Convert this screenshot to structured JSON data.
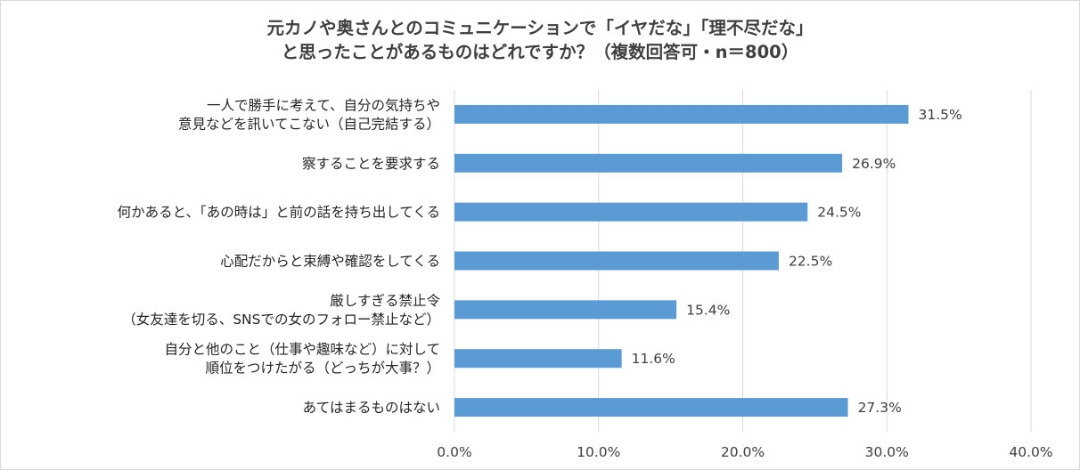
{
  "chart_data": {
    "type": "bar",
    "orientation": "horizontal",
    "title_lines": [
      "元カノや奥さんとのコミュニケーションで「イヤだな」「理不尽だな」",
      "と思ったことがあるものはどれですか？（複数回答可・n＝800）"
    ],
    "categories": [
      [
        "一人で勝手に考えて、自分の気持ちや",
        "意見などを訊いてこない（自己完結する）"
      ],
      [
        "察することを要求する"
      ],
      [
        "何かあると、「あの時は」と前の話を持ち出してくる"
      ],
      [
        "心配だからと束縛や確認をしてくる"
      ],
      [
        "厳しすぎる禁止令",
        "（女友達を切る、SNSでの女のフォロー禁止など）"
      ],
      [
        "自分と他のこと（仕事や趣味など）に対して",
        "順位をつけたがる（どっちが大事？）"
      ],
      [
        "あてはまるものはない"
      ]
    ],
    "values": [
      31.5,
      26.9,
      24.5,
      22.5,
      15.4,
      11.6,
      27.3
    ],
    "value_labels": [
      "31.5%",
      "26.9%",
      "24.5%",
      "22.5%",
      "15.4%",
      "11.6%",
      "27.3%"
    ],
    "xlim": [
      0,
      40
    ],
    "xticks": [
      0,
      10,
      20,
      30,
      40
    ],
    "xtick_labels": [
      "0.0%",
      "10.0%",
      "20.0%",
      "30.0%",
      "40.0%"
    ],
    "grid": "vertical",
    "bar_color": "#5b9bd5",
    "grid_color": "#d9d9d9"
  }
}
